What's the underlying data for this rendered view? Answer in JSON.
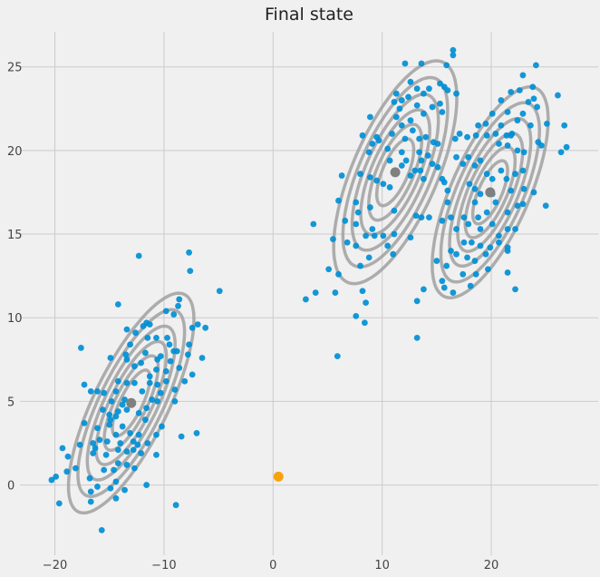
{
  "chart_data": {
    "type": "scatter",
    "title": "Final state",
    "xlabel": "",
    "ylabel": "",
    "xlim": [
      -23.2,
      29.8
    ],
    "ylim": [
      -4.2,
      27.1
    ],
    "xticks": [
      -20,
      -10,
      0,
      10,
      20
    ],
    "yticks": [
      0,
      5,
      10,
      15,
      20,
      25
    ],
    "grid": true,
    "colors": {
      "background": "#f0f0f0",
      "grid": "#cbcbcb",
      "points": "#008fd5",
      "contours": "#a0a0a0",
      "means": "#808080",
      "highlight": "#f8a20d"
    },
    "highlight_point": [
      0.5,
      0.5
    ],
    "components": [
      {
        "mean": [
          -13.0,
          4.9
        ],
        "semi_axes": [
          8.2,
          3.0
        ],
        "angle_deg": 50
      },
      {
        "mean": [
          11.2,
          18.7
        ],
        "semi_axes": [
          8.0,
          3.5
        ],
        "angle_deg": 52
      },
      {
        "mean": [
          19.9,
          17.5
        ],
        "semi_axes": [
          7.6,
          3.2
        ],
        "angle_deg": 52
      }
    ],
    "contour_levels": [
      1.0,
      0.85,
      0.7,
      0.56,
      0.43,
      0.3
    ],
    "points": [
      [
        -12.3,
        13.7
      ],
      [
        -7.7,
        13.9
      ],
      [
        -7.6,
        12.8
      ],
      [
        -4.9,
        11.6
      ],
      [
        -14.2,
        10.8
      ],
      [
        -8.6,
        11.1
      ],
      [
        -8.7,
        10.7
      ],
      [
        -9.8,
        10.4
      ],
      [
        -9.1,
        10.2
      ],
      [
        -17.6,
        8.2
      ],
      [
        -11.6,
        9.7
      ],
      [
        -11.3,
        9.6
      ],
      [
        -11.9,
        9.5
      ],
      [
        -13.4,
        9.3
      ],
      [
        -12.6,
        9.1
      ],
      [
        -7.4,
        9.4
      ],
      [
        -6.9,
        9.6
      ],
      [
        -6.2,
        9.4
      ],
      [
        -11.5,
        8.8
      ],
      [
        -10.7,
        8.8
      ],
      [
        -9.7,
        8.8
      ],
      [
        -9.5,
        8.4
      ],
      [
        -9.1,
        8.0
      ],
      [
        -8.8,
        8.0
      ],
      [
        -7.7,
        8.4
      ],
      [
        -7.8,
        7.8
      ],
      [
        -6.5,
        7.6
      ],
      [
        -13.1,
        8.4
      ],
      [
        -13.5,
        7.8
      ],
      [
        -13.4,
        7.5
      ],
      [
        -14.9,
        7.6
      ],
      [
        -11.7,
        7.9
      ],
      [
        -10.3,
        7.7
      ],
      [
        -10.6,
        7.5
      ],
      [
        -9.4,
        7.4
      ],
      [
        -8.6,
        7.0
      ],
      [
        -12.7,
        7.1
      ],
      [
        -12.1,
        7.3
      ],
      [
        -10.7,
        6.9
      ],
      [
        -9.8,
        6.8
      ],
      [
        -7.4,
        6.6
      ],
      [
        -8.1,
        6.2
      ],
      [
        -9.0,
        5.7
      ],
      [
        -9.0,
        5.0
      ],
      [
        -17.3,
        6.0
      ],
      [
        -16.7,
        5.6
      ],
      [
        -16.1,
        5.6
      ],
      [
        -15.5,
        5.5
      ],
      [
        -14.2,
        6.2
      ],
      [
        -13.4,
        6.1
      ],
      [
        -12.7,
        6.1
      ],
      [
        -11.3,
        6.5
      ],
      [
        -11.3,
        6.1
      ],
      [
        -10.6,
        6.0
      ],
      [
        -9.8,
        6.2
      ],
      [
        -10.3,
        5.5
      ],
      [
        -14.4,
        5.6
      ],
      [
        -12.0,
        5.6
      ],
      [
        -11.1,
        5.1
      ],
      [
        -10.6,
        5.0
      ],
      [
        -14.8,
        5.0
      ],
      [
        -13.6,
        5.1
      ],
      [
        -13.8,
        4.8
      ],
      [
        -13.4,
        4.5
      ],
      [
        -15.6,
        4.5
      ],
      [
        -15.0,
        4.2
      ],
      [
        -14.2,
        4.4
      ],
      [
        -14.9,
        3.9
      ],
      [
        -14.4,
        4.1
      ],
      [
        -12.3,
        4.3
      ],
      [
        -11.6,
        4.6
      ],
      [
        -11.7,
        3.9
      ],
      [
        -17.3,
        3.7
      ],
      [
        -16.1,
        3.4
      ],
      [
        -15.0,
        3.6
      ],
      [
        -13.8,
        3.5
      ],
      [
        -13.1,
        3.1
      ],
      [
        -12.3,
        3.0
      ],
      [
        -10.2,
        3.5
      ],
      [
        -10.7,
        3.0
      ],
      [
        -8.4,
        2.9
      ],
      [
        -7.0,
        3.1
      ],
      [
        -17.7,
        2.4
      ],
      [
        -16.5,
        2.5
      ],
      [
        -15.9,
        2.7
      ],
      [
        -16.3,
        2.2
      ],
      [
        -15.2,
        2.6
      ],
      [
        -14.4,
        3.0
      ],
      [
        -14.0,
        2.5
      ],
      [
        -12.8,
        2.6
      ],
      [
        -12.4,
        2.4
      ],
      [
        -11.5,
        2.5
      ],
      [
        -19.3,
        2.2
      ],
      [
        -18.8,
        1.7
      ],
      [
        -16.5,
        1.9
      ],
      [
        -15.3,
        1.8
      ],
      [
        -14.2,
        2.1
      ],
      [
        -13.4,
        2.0
      ],
      [
        -12.8,
        2.1
      ],
      [
        -12.1,
        1.9
      ],
      [
        -10.7,
        1.8
      ],
      [
        -18.1,
        1.0
      ],
      [
        -18.9,
        0.8
      ],
      [
        -15.5,
        0.9
      ],
      [
        -14.6,
        0.9
      ],
      [
        -14.2,
        1.3
      ],
      [
        -13.4,
        1.2
      ],
      [
        -12.7,
        1.0
      ],
      [
        -20.3,
        0.3
      ],
      [
        -19.9,
        0.5
      ],
      [
        -16.8,
        0.4
      ],
      [
        -16.1,
        -0.1
      ],
      [
        -14.9,
        -0.2
      ],
      [
        -14.4,
        0.2
      ],
      [
        -13.6,
        -0.3
      ],
      [
        -11.6,
        0.0
      ],
      [
        -19.6,
        -1.1
      ],
      [
        -16.7,
        -1.0
      ],
      [
        -16.7,
        -0.4
      ],
      [
        -14.4,
        -0.8
      ],
      [
        -8.9,
        -1.2
      ],
      [
        -15.7,
        -2.7
      ],
      [
        16.5,
        26.0
      ],
      [
        16.5,
        25.7
      ],
      [
        12.1,
        25.2
      ],
      [
        13.6,
        25.2
      ],
      [
        15.9,
        25.1
      ],
      [
        24.1,
        25.1
      ],
      [
        22.9,
        24.5
      ],
      [
        26.1,
        23.3
      ],
      [
        23.8,
        23.8
      ],
      [
        21.8,
        23.5
      ],
      [
        22.6,
        23.6
      ],
      [
        12.6,
        24.1
      ],
      [
        13.2,
        23.7
      ],
      [
        13.8,
        23.4
      ],
      [
        14.3,
        23.7
      ],
      [
        15.3,
        24.0
      ],
      [
        15.7,
        23.8
      ],
      [
        16.0,
        23.6
      ],
      [
        16.8,
        23.4
      ],
      [
        11.3,
        23.4
      ],
      [
        11.8,
        23.0
      ],
      [
        12.4,
        23.2
      ],
      [
        11.1,
        22.9
      ],
      [
        11.6,
        22.5
      ],
      [
        13.2,
        22.7
      ],
      [
        13.8,
        22.2
      ],
      [
        14.6,
        22.6
      ],
      [
        15.3,
        22.8
      ],
      [
        15.5,
        22.3
      ],
      [
        8.9,
        22.0
      ],
      [
        11.3,
        22.0
      ],
      [
        11.8,
        21.5
      ],
      [
        12.6,
        21.8
      ],
      [
        12.8,
        21.2
      ],
      [
        13.4,
        20.7
      ],
      [
        8.2,
        20.9
      ],
      [
        9.5,
        20.8
      ],
      [
        9.7,
        20.6
      ],
      [
        9.1,
        20.4
      ],
      [
        10.9,
        21.0
      ],
      [
        12.1,
        20.7
      ],
      [
        14.0,
        20.8
      ],
      [
        14.7,
        20.5
      ],
      [
        15.1,
        20.4
      ],
      [
        16.7,
        20.7
      ],
      [
        17.1,
        21.0
      ],
      [
        20.9,
        23.0
      ],
      [
        21.5,
        22.3
      ],
      [
        23.4,
        22.9
      ],
      [
        23.9,
        23.1
      ],
      [
        24.2,
        22.6
      ],
      [
        20.1,
        22.2
      ],
      [
        20.9,
        21.5
      ],
      [
        21.8,
        20.9
      ],
      [
        22.4,
        21.8
      ],
      [
        22.9,
        22.2
      ],
      [
        23.6,
        21.5
      ],
      [
        25.1,
        21.6
      ],
      [
        26.7,
        21.5
      ],
      [
        18.8,
        21.5
      ],
      [
        19.5,
        21.6
      ],
      [
        17.8,
        20.8
      ],
      [
        18.6,
        20.9
      ],
      [
        19.6,
        20.9
      ],
      [
        20.4,
        21.0
      ],
      [
        21.4,
        20.9
      ],
      [
        21.9,
        21.0
      ],
      [
        20.7,
        20.4
      ],
      [
        21.5,
        20.3
      ],
      [
        22.4,
        20.0
      ],
      [
        23.0,
        19.9
      ],
      [
        24.3,
        20.5
      ],
      [
        24.6,
        20.3
      ],
      [
        26.9,
        20.2
      ],
      [
        26.4,
        19.9
      ],
      [
        8.8,
        19.9
      ],
      [
        10.5,
        20.1
      ],
      [
        10.7,
        19.4
      ],
      [
        11.8,
        19.9
      ],
      [
        12.2,
        19.4
      ],
      [
        13.4,
        19.9
      ],
      [
        13.6,
        19.4
      ],
      [
        14.2,
        19.7
      ],
      [
        14.6,
        19.2
      ],
      [
        13.0,
        18.8
      ],
      [
        13.5,
        18.8
      ],
      [
        13.8,
        18.3
      ],
      [
        6.3,
        18.5
      ],
      [
        8.0,
        18.6
      ],
      [
        8.9,
        18.4
      ],
      [
        9.5,
        18.2
      ],
      [
        10.1,
        18.0
      ],
      [
        10.7,
        17.8
      ],
      [
        11.8,
        19.1
      ],
      [
        12.6,
        18.5
      ],
      [
        15.1,
        19.0
      ],
      [
        15.5,
        18.3
      ],
      [
        15.7,
        18.1
      ],
      [
        16.0,
        17.6
      ],
      [
        16.8,
        19.6
      ],
      [
        17.4,
        19.2
      ],
      [
        17.9,
        19.6
      ],
      [
        18.5,
        19.1
      ],
      [
        19.0,
        19.4
      ],
      [
        19.6,
        18.6
      ],
      [
        20.1,
        18.3
      ],
      [
        20.9,
        18.8
      ],
      [
        21.4,
        18.3
      ],
      [
        22.2,
        18.6
      ],
      [
        22.9,
        18.8
      ],
      [
        18.0,
        18.0
      ],
      [
        18.5,
        17.7
      ],
      [
        19.0,
        17.4
      ],
      [
        20.1,
        17.4
      ],
      [
        20.4,
        16.9
      ],
      [
        21.8,
        17.6
      ],
      [
        23.0,
        17.7
      ],
      [
        23.9,
        17.5
      ],
      [
        25.0,
        16.7
      ],
      [
        22.9,
        16.8
      ],
      [
        18.5,
        16.9
      ],
      [
        19.6,
        16.3
      ],
      [
        21.5,
        16.3
      ],
      [
        22.4,
        16.7
      ],
      [
        16.0,
        16.9
      ],
      [
        16.3,
        16.0
      ],
      [
        16.8,
        15.3
      ],
      [
        17.5,
        16.0
      ],
      [
        17.9,
        15.6
      ],
      [
        18.8,
        16.0
      ],
      [
        19.0,
        15.3
      ],
      [
        20.1,
        15.6
      ],
      [
        20.7,
        14.9
      ],
      [
        21.5,
        15.3
      ],
      [
        22.2,
        15.3
      ],
      [
        17.5,
        14.5
      ],
      [
        18.2,
        14.5
      ],
      [
        19.0,
        14.3
      ],
      [
        19.9,
        14.2
      ],
      [
        20.7,
        14.5
      ],
      [
        21.5,
        14.2
      ],
      [
        16.3,
        14.0
      ],
      [
        16.8,
        13.8
      ],
      [
        17.8,
        13.6
      ],
      [
        18.5,
        13.4
      ],
      [
        19.5,
        13.8
      ],
      [
        21.5,
        14.0
      ],
      [
        21.5,
        12.7
      ],
      [
        22.2,
        11.7
      ],
      [
        19.7,
        12.9
      ],
      [
        18.6,
        12.6
      ],
      [
        17.4,
        12.6
      ],
      [
        18.1,
        11.9
      ],
      [
        16.5,
        11.5
      ],
      [
        15.9,
        13.1
      ],
      [
        15.5,
        12.2
      ],
      [
        15.7,
        11.8
      ],
      [
        15.0,
        13.4
      ],
      [
        6.0,
        17.0
      ],
      [
        7.6,
        16.9
      ],
      [
        7.8,
        16.3
      ],
      [
        8.9,
        16.6
      ],
      [
        11.1,
        16.4
      ],
      [
        13.1,
        16.1
      ],
      [
        13.6,
        16.0
      ],
      [
        14.3,
        16.0
      ],
      [
        15.5,
        15.8
      ],
      [
        6.6,
        15.8
      ],
      [
        7.6,
        15.6
      ],
      [
        9.1,
        15.3
      ],
      [
        10.1,
        14.9
      ],
      [
        11.1,
        15.0
      ],
      [
        12.6,
        14.8
      ],
      [
        5.5,
        14.7
      ],
      [
        6.8,
        14.5
      ],
      [
        7.6,
        14.3
      ],
      [
        8.5,
        14.9
      ],
      [
        9.3,
        14.9
      ],
      [
        10.5,
        14.3
      ],
      [
        11.0,
        13.8
      ],
      [
        8.8,
        13.6
      ],
      [
        8.0,
        13.1
      ],
      [
        5.1,
        12.9
      ],
      [
        6.0,
        12.6
      ],
      [
        5.7,
        11.5
      ],
      [
        8.2,
        11.6
      ],
      [
        8.5,
        10.9
      ],
      [
        3.7,
        15.6
      ],
      [
        3.0,
        11.1
      ],
      [
        3.9,
        11.5
      ],
      [
        7.6,
        10.1
      ],
      [
        8.4,
        9.7
      ],
      [
        13.2,
        11.0
      ],
      [
        13.8,
        11.7
      ],
      [
        13.2,
        8.8
      ],
      [
        5.9,
        7.7
      ]
    ]
  }
}
